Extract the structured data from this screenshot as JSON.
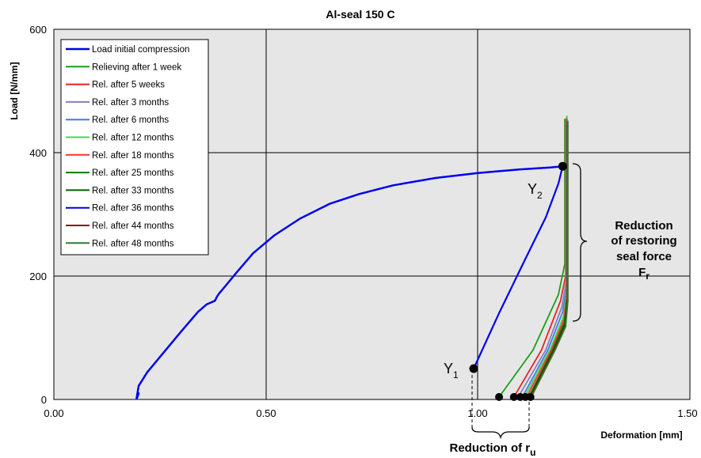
{
  "chart_data": {
    "type": "line",
    "title": "Al-seal 150  C",
    "xlabel": "Deformation [mm]",
    "ylabel": "Load [N/mm]",
    "xlim": [
      0,
      1.5
    ],
    "ylim": [
      0,
      600
    ],
    "xticks": [
      "0.00",
      "0.50",
      "1.00",
      "1.50"
    ],
    "yticks": [
      "0",
      "200",
      "400",
      "600"
    ],
    "grid": true,
    "legend_position": "top-left",
    "series": [
      {
        "name": "Load initial compression",
        "color": "#0000ee",
        "width": 2.5,
        "x": [
          0.195,
          0.2,
          0.195,
          0.2,
          0.22,
          0.26,
          0.3,
          0.34,
          0.36,
          0.38,
          0.385,
          0.39,
          0.4,
          0.43,
          0.47,
          0.52,
          0.58,
          0.65,
          0.72,
          0.8,
          0.9,
          1.0,
          1.1,
          1.17,
          1.2
        ],
        "y": [
          0,
          10,
          2,
          22,
          44,
          77,
          110,
          142,
          154,
          160,
          167,
          172,
          180,
          205,
          237,
          266,
          293,
          317,
          333,
          347,
          359,
          367,
          373,
          376,
          378
        ]
      },
      {
        "name": "Relieving after 1 week",
        "color": "#1a9e1a",
        "x": [
          1.05,
          1.13,
          1.19,
          1.205,
          1.205
        ],
        "y": [
          4,
          80,
          170,
          220,
          455
        ]
      },
      {
        "name": "Rel. after 5 weeks",
        "color": "#e8231e",
        "x": [
          1.085,
          1.15,
          1.195,
          1.207,
          1.207
        ],
        "y": [
          4,
          80,
          160,
          200,
          452
        ]
      },
      {
        "name": "Rel. after 3 months",
        "color": "#8080c0",
        "x": [
          1.095,
          1.16,
          1.198,
          1.208,
          1.208
        ],
        "y": [
          4,
          80,
          150,
          190,
          455
        ]
      },
      {
        "name": "Rel. after 6 months",
        "color": "#3b7de3",
        "x": [
          1.105,
          1.165,
          1.2,
          1.209,
          1.209
        ],
        "y": [
          4,
          80,
          142,
          180,
          458
        ]
      },
      {
        "name": "Rel. after 12 months",
        "color": "#44dd44",
        "x": [
          1.11,
          1.17,
          1.202,
          1.21,
          1.21
        ],
        "y": [
          4,
          80,
          135,
          175,
          460
        ]
      },
      {
        "name": "Rel. after 18 months",
        "color": "#ff3030",
        "x": [
          1.115,
          1.173,
          1.203,
          1.21,
          1.21
        ],
        "y": [
          4,
          80,
          130,
          170,
          455
        ]
      },
      {
        "name": "Rel. after 25 months",
        "color": "#0a7a0a",
        "x": [
          1.12,
          1.176,
          1.204,
          1.211,
          1.211
        ],
        "y": [
          4,
          80,
          125,
          165,
          450
        ]
      },
      {
        "name": "Rel. after 33 months",
        "color": "#006400",
        "x": [
          1.122,
          1.178,
          1.205,
          1.211,
          1.211
        ],
        "y": [
          4,
          80,
          122,
          162,
          448
        ]
      },
      {
        "name": "Rel. after 36 months",
        "color": "#0000ee",
        "width": 2.2,
        "x": [
          0.99,
          1.05,
          1.11,
          1.16,
          1.19,
          1.2
        ],
        "y": [
          50,
          140,
          225,
          295,
          350,
          378
        ]
      },
      {
        "name": "Rel. after 44 months",
        "color": "#8b1010",
        "x": [
          1.124,
          1.18,
          1.206,
          1.212,
          1.212
        ],
        "y": [
          4,
          80,
          120,
          160,
          450
        ]
      },
      {
        "name": "Rel. after 48 months",
        "color": "#2e7d2e",
        "x": [
          1.126,
          1.182,
          1.207,
          1.212,
          1.212
        ],
        "y": [
          4,
          80,
          118,
          158,
          452
        ]
      }
    ],
    "markers": [
      {
        "x": 0.99,
        "y": 50
      },
      {
        "x": 1.2,
        "y": 378
      },
      {
        "x": 1.05,
        "y": 4
      },
      {
        "x": 1.085,
        "y": 4
      },
      {
        "x": 1.1,
        "y": 4
      },
      {
        "x": 1.112,
        "y": 4
      },
      {
        "x": 1.124,
        "y": 4
      }
    ],
    "annotations": {
      "y1_main": "Y",
      "y1_sub": "1",
      "y2_main": "Y",
      "y2_sub": "2",
      "bracket_line1": "Reduction",
      "bracket_line2": "of restoring",
      "bracket_line3": "seal force",
      "bracket_line4_main": "F",
      "bracket_line4_sub": "r",
      "ru_main": "Reduction of r",
      "ru_sub": "u"
    }
  }
}
